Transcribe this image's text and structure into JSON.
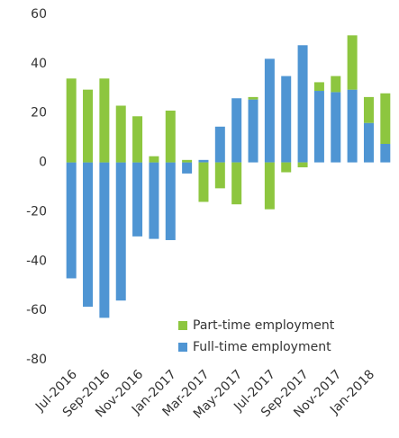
{
  "chart_data": {
    "type": "stacked-bar",
    "categories": [
      "Jul-2016",
      null,
      "Sep-2016",
      null,
      "Nov-2016",
      null,
      "Jan-2017",
      null,
      "Mar-2017",
      null,
      "May-2017",
      null,
      "Jul-2017",
      null,
      "Sep-2017",
      null,
      "Nov-2017",
      null,
      "Jan-2018",
      null
    ],
    "series": [
      {
        "name": "Full-time employment",
        "color": "#4f95d3",
        "values": [
          -47,
          -58.5,
          -63,
          -56,
          -30,
          -31,
          -31.5,
          -4.5,
          1,
          14.5,
          26,
          25.5,
          42,
          35,
          47.5,
          29,
          28.5,
          29.5,
          16,
          7.5
        ]
      },
      {
        "name": "Part-time employment",
        "color": "#8dc63f",
        "values": [
          34,
          29.5,
          34,
          23,
          18.7,
          2.5,
          21,
          1,
          -16,
          -10.5,
          -17,
          1,
          -19,
          -4,
          -2,
          3.5,
          6.5,
          22,
          10.5,
          20.5
        ]
      }
    ],
    "ylim": [
      -80,
      60
    ],
    "yticks": [
      -80,
      -60,
      -40,
      -20,
      0,
      20,
      40,
      60
    ],
    "legend": "lower-right",
    "legend_order": [
      "Part-time employment",
      "Full-time employment"
    ]
  }
}
